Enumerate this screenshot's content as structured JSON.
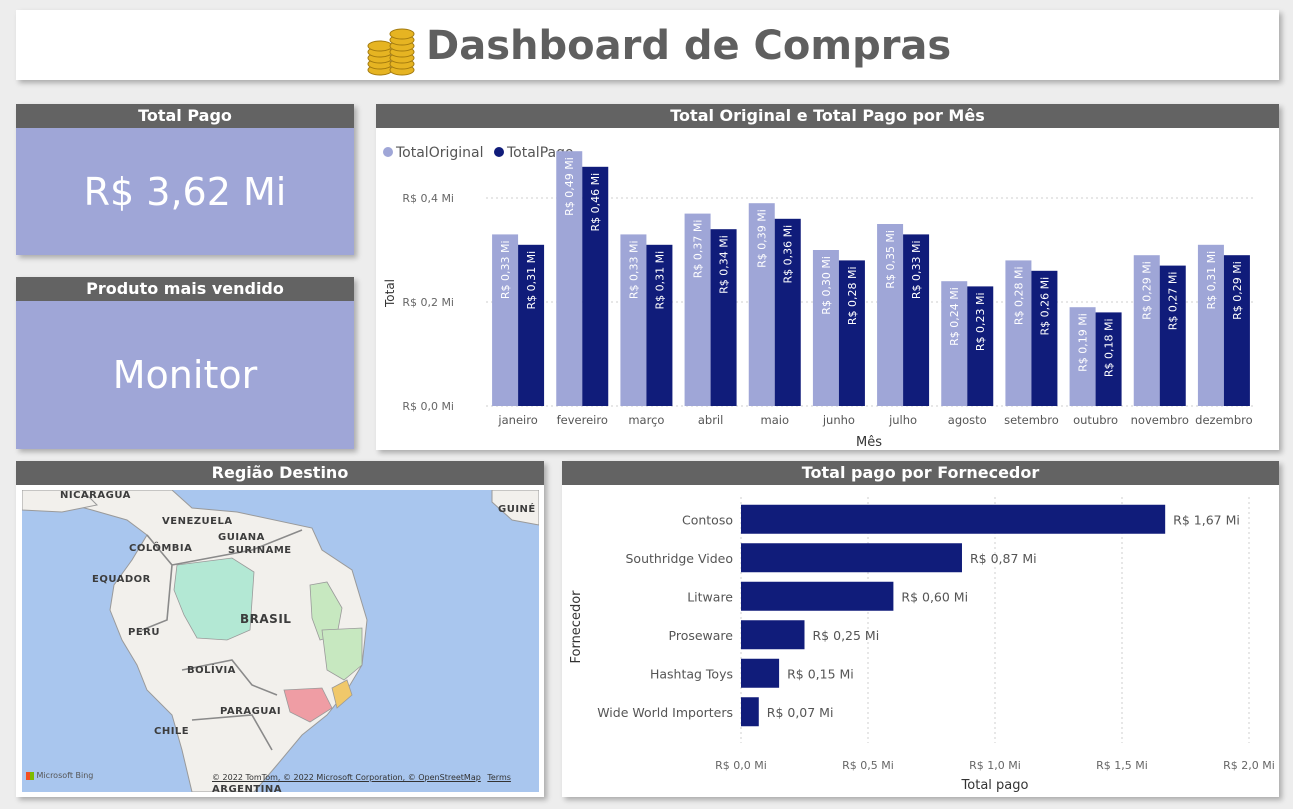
{
  "header": {
    "title": "Dashboard de Compras",
    "icon": "coins-icon"
  },
  "kpis": {
    "total_pago": {
      "label": "Total Pago",
      "value": "R$ 3,62 Mi"
    },
    "produto": {
      "label": "Produto mais vendido",
      "value": "Monitor"
    }
  },
  "colors": {
    "original": "#9fa6d7",
    "pago": "#101c7a",
    "header_bg": "#636363",
    "kpi_bg": "#9fa6d7"
  },
  "monthly_title": "Total Original e Total Pago por Mês",
  "map": {
    "title": "Região Destino",
    "labels": [
      "NICARÁGUA",
      "VENEZUELA",
      "GUIANA",
      "SURINAME",
      "GUINÉ",
      "COLÔMBIA",
      "EQUADOR",
      "BRASIL",
      "PERU",
      "BOLÍVIA",
      "PARAGUAI",
      "CHILE",
      "ARGENTINA"
    ],
    "attribution": "© 2022 TomTom, © 2022 Microsoft Corporation, © OpenStreetMap",
    "terms": "Terms",
    "brand": "Microsoft Bing"
  },
  "supplier_title": "Total pago por Fornecedor",
  "chart_data": [
    {
      "type": "bar",
      "title": "Total Original e Total Pago por Mês",
      "xlabel": "Mês",
      "ylabel": "Total",
      "categories": [
        "janeiro",
        "fevereiro",
        "março",
        "abril",
        "maio",
        "junho",
        "julho",
        "agosto",
        "setembro",
        "outubro",
        "novembro",
        "dezembro"
      ],
      "series": [
        {
          "name": "TotalOriginal",
          "values": [
            0.33,
            0.49,
            0.33,
            0.37,
            0.39,
            0.3,
            0.35,
            0.24,
            0.28,
            0.19,
            0.29,
            0.31
          ],
          "labels": [
            "R$ 0,33 Mi",
            "R$ 0,49 Mi",
            "R$ 0,33 Mi",
            "R$ 0,37 Mi",
            "R$ 0,39 Mi",
            "R$ 0,30 Mi",
            "R$ 0,35 Mi",
            "R$ 0,24 Mi",
            "R$ 0,28 Mi",
            "R$ 0,19 Mi",
            "R$ 0,29 Mi",
            "R$ 0,31 Mi"
          ]
        },
        {
          "name": "TotalPago",
          "values": [
            0.31,
            0.46,
            0.31,
            0.34,
            0.36,
            0.28,
            0.33,
            0.23,
            0.26,
            0.18,
            0.27,
            0.29
          ],
          "labels": [
            "R$ 0,31 Mi",
            "R$ 0,46 Mi",
            "R$ 0,31 Mi",
            "R$ 0,34 Mi",
            "R$ 0,36 Mi",
            "R$ 0,28 Mi",
            "R$ 0,33 Mi",
            "R$ 0,23 Mi",
            "R$ 0,26 Mi",
            "R$ 0,18 Mi",
            "R$ 0,27 Mi",
            "R$ 0,29 Mi"
          ]
        }
      ],
      "yticks": [
        0,
        0.2,
        0.4
      ],
      "ytick_labels": [
        "R$ 0,0 Mi",
        "R$ 0,2 Mi",
        "R$ 0,4 Mi"
      ],
      "ylim": [
        0,
        0.5
      ],
      "legend": "top-left",
      "grid": true
    },
    {
      "type": "bar",
      "orientation": "horizontal",
      "title": "Total pago por Fornecedor",
      "xlabel": "Total pago",
      "ylabel": "Fornecedor",
      "categories": [
        "Contoso",
        "Southridge Video",
        "Litware",
        "Proseware",
        "Hashtag Toys",
        "Wide World Importers"
      ],
      "values": [
        1.67,
        0.87,
        0.6,
        0.25,
        0.15,
        0.07
      ],
      "labels": [
        "R$ 1,67 Mi",
        "R$ 0,87 Mi",
        "R$ 0,60 Mi",
        "R$ 0,25 Mi",
        "R$ 0,15 Mi",
        "R$ 0,07 Mi"
      ],
      "xticks": [
        0,
        0.5,
        1.0,
        1.5,
        2.0
      ],
      "xtick_labels": [
        "R$ 0,0 Mi",
        "R$ 0,5 Mi",
        "R$ 1,0 Mi",
        "R$ 1,5 Mi",
        "R$ 2,0 Mi"
      ],
      "xlim": [
        0,
        2.0
      ],
      "grid": true
    }
  ]
}
